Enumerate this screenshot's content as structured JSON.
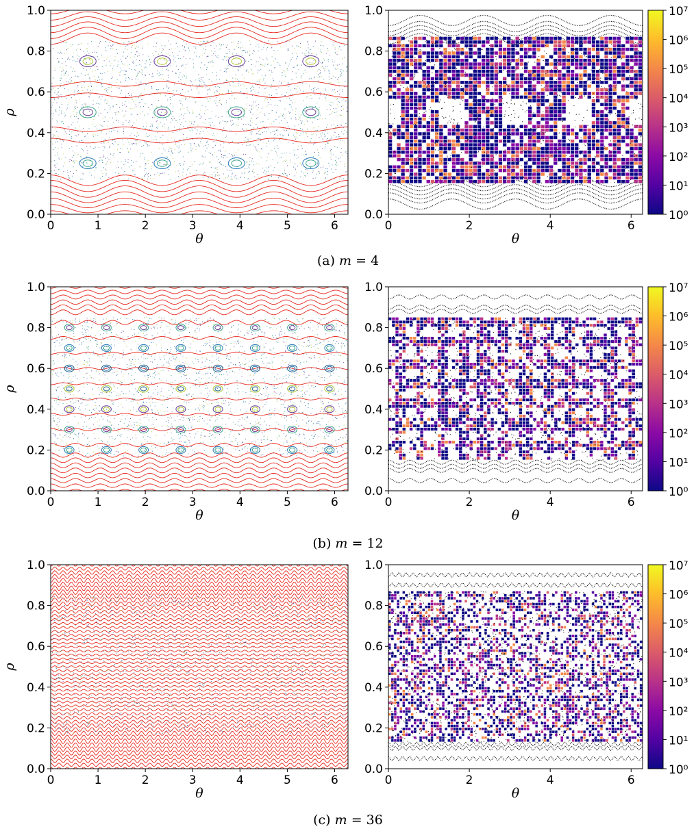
{
  "chart_data": [
    {
      "type": "scatter",
      "caption_prefix": "(a)",
      "caption_var": "m",
      "caption_eq": "= 4",
      "m": 4,
      "left": {
        "xlabel": "θ",
        "ylabel": "ρ",
        "xlim": [
          0,
          6.283
        ],
        "ylim": [
          0.0,
          1.0
        ],
        "xticks": [
          "0",
          "1",
          "2",
          "3",
          "4",
          "5",
          "6"
        ],
        "yticks": [
          "0.0",
          "0.2",
          "0.4",
          "0.6",
          "0.8",
          "1.0"
        ]
      },
      "right": {
        "xlabel": "θ",
        "xlim": [
          0,
          6.283
        ],
        "ylim": [
          0.0,
          1.0
        ],
        "xticks": [
          "0",
          "2",
          "4",
          "6"
        ],
        "yticks": [
          "0.0",
          "0.2",
          "0.4",
          "0.6",
          "0.8",
          "1.0"
        ],
        "colorbar_ticks": [
          "10⁰",
          "10¹",
          "10²",
          "10³",
          "10⁴",
          "10⁵",
          "10⁶",
          "10⁷"
        ],
        "colormap": "plasma",
        "scale": "log"
      }
    },
    {
      "type": "scatter",
      "caption_prefix": "(b)",
      "caption_var": "m",
      "caption_eq": "= 12",
      "m": 12,
      "left": {
        "xlabel": "θ",
        "ylabel": "ρ",
        "xlim": [
          0,
          6.283
        ],
        "ylim": [
          0.0,
          1.0
        ],
        "xticks": [
          "0",
          "1",
          "2",
          "3",
          "4",
          "5",
          "6"
        ],
        "yticks": [
          "0.0",
          "0.2",
          "0.4",
          "0.6",
          "0.8",
          "1.0"
        ]
      },
      "right": {
        "xlabel": "θ",
        "xlim": [
          0,
          6.283
        ],
        "ylim": [
          0.0,
          1.0
        ],
        "xticks": [
          "0",
          "2",
          "4",
          "6"
        ],
        "yticks": [
          "0.0",
          "0.2",
          "0.4",
          "0.6",
          "0.8",
          "1.0"
        ],
        "colorbar_ticks": [
          "10⁰",
          "10¹",
          "10²",
          "10³",
          "10⁴",
          "10⁵",
          "10⁶",
          "10⁷"
        ],
        "colormap": "plasma",
        "scale": "log"
      }
    },
    {
      "type": "scatter",
      "caption_prefix": "(c)",
      "caption_var": "m",
      "caption_eq": "= 36",
      "m": 36,
      "left": {
        "xlabel": "θ",
        "ylabel": "ρ",
        "xlim": [
          0,
          6.283
        ],
        "ylim": [
          0.0,
          1.0
        ],
        "xticks": [
          "0",
          "1",
          "2",
          "3",
          "4",
          "5",
          "6"
        ],
        "yticks": [
          "0.0",
          "0.2",
          "0.4",
          "0.6",
          "0.8",
          "1.0"
        ]
      },
      "right": {
        "xlabel": "θ",
        "xlim": [
          0,
          6.283
        ],
        "ylim": [
          0.0,
          1.0
        ],
        "xticks": [
          "0",
          "2",
          "4",
          "6"
        ],
        "yticks": [
          "0.0",
          "0.2",
          "0.4",
          "0.6",
          "0.8",
          "1.0"
        ],
        "colorbar_ticks": [
          "10⁰",
          "10¹",
          "10²",
          "10³",
          "10⁴",
          "10⁵",
          "10⁶",
          "10⁷"
        ],
        "colormap": "plasma",
        "scale": "log"
      }
    }
  ],
  "colors": {
    "flux_surface": "#e8281e",
    "island_colors": [
      "#2b7bb9",
      "#3aa58a",
      "#6a3d9a",
      "#b3c93a",
      "#1f5f8b"
    ],
    "orbit_black": "#111111",
    "plasma_stops": [
      "#0d0887",
      "#5302a3",
      "#8b0aa5",
      "#b83289",
      "#db5c68",
      "#f48849",
      "#febd2a",
      "#f0f921"
    ]
  }
}
